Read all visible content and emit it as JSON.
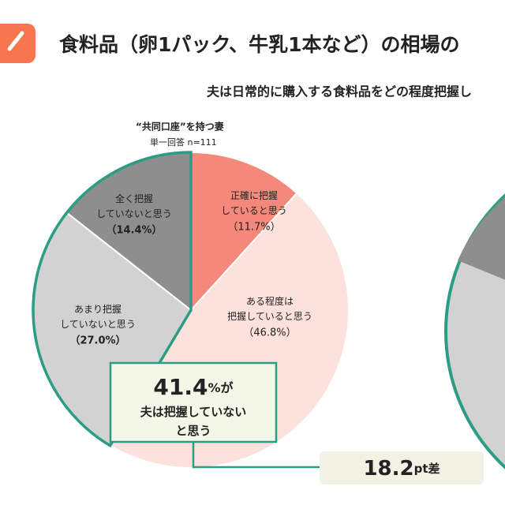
{
  "header": {
    "title": "食料品（卵1パック、牛乳1本など）の相場の",
    "subtitle": "夫は日常的に購入する食料品をどの程度把握し"
  },
  "chart_data": {
    "type": "pie",
    "title": "“共同口座”を持つ妻",
    "subtitle": "単一回答 n=111",
    "categories": [
      "正確に把握\nしていると思う",
      "ある程度は\n把握していると思う",
      "あまり把握\nしていないと思う",
      "全く把握\nしていないと思う"
    ],
    "values": [
      11.7,
      46.8,
      27.0,
      14.4
    ],
    "value_labels": [
      "（11.7%）",
      "（46.8%）",
      "（27.0%）",
      "（14.4%）"
    ],
    "colors": [
      "#f4887b",
      "#fde1dd",
      "#d2d2d2",
      "#8e8e8e"
    ]
  },
  "callout": {
    "number": "41.4",
    "suffix": "%が",
    "text": "夫は把握していない\nと思う"
  },
  "difference": {
    "number": "18.2",
    "suffix": "pt差"
  }
}
